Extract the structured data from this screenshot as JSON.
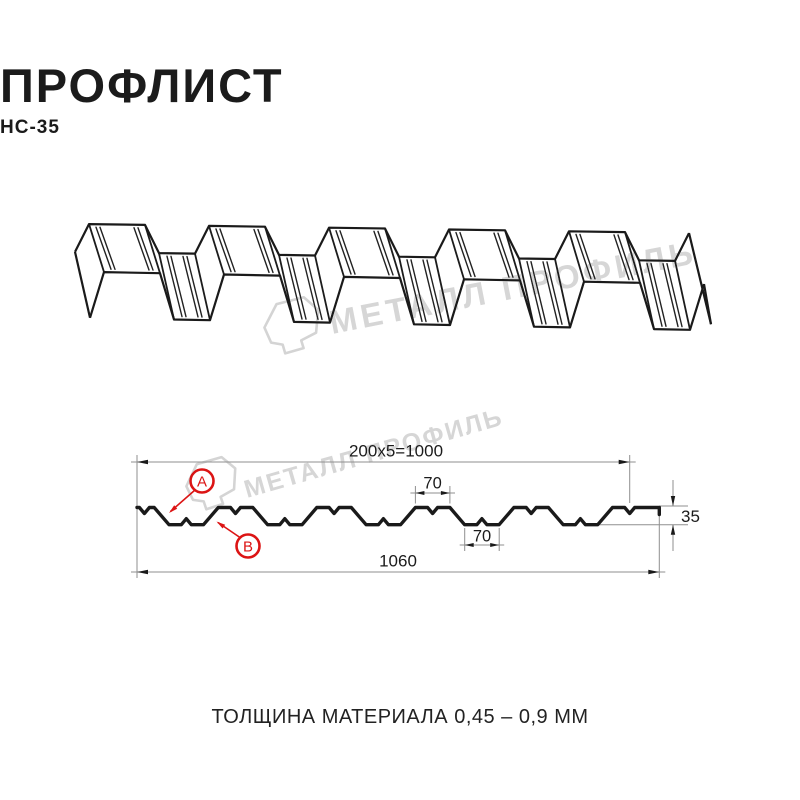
{
  "page": {
    "title": "ПРОФЛИСТ",
    "subtitle": "НС-35",
    "footer_note": "ТОЛЩИНА МАТЕРИАЛА 0,45 – 0,9 ММ"
  },
  "watermark": {
    "brand_text": "МЕТАЛЛ ПРОФИЛЬ",
    "logo_icon": "metal-profil-hexagon-logo"
  },
  "colors": {
    "ink": "#1b1b1b",
    "drawing_line": "#1a1a1a",
    "dim_line": "#8f8f8f",
    "callout_red": "#dc1414",
    "watermark_gray": "#d6d6d6",
    "background": "#ffffff"
  },
  "chart_data": {
    "type": "diagram",
    "product": "Профлист НС-35",
    "views": [
      "3d-perspective-sheet",
      "cross-section-with-dimensions"
    ],
    "profile_dimensions_mm": {
      "total_width": 1060,
      "working_width": 1000,
      "pitch": 200,
      "pitch_count": 5,
      "rib_height": 35,
      "crest_top_width": 70,
      "valley_bottom_width": 70
    },
    "dimension_labels": {
      "working_width": "200x5=1000",
      "crest": "70",
      "valley": "70",
      "height": "35",
      "total": "1060"
    },
    "callouts": [
      {
        "id": "A"
      },
      {
        "id": "B"
      }
    ]
  }
}
